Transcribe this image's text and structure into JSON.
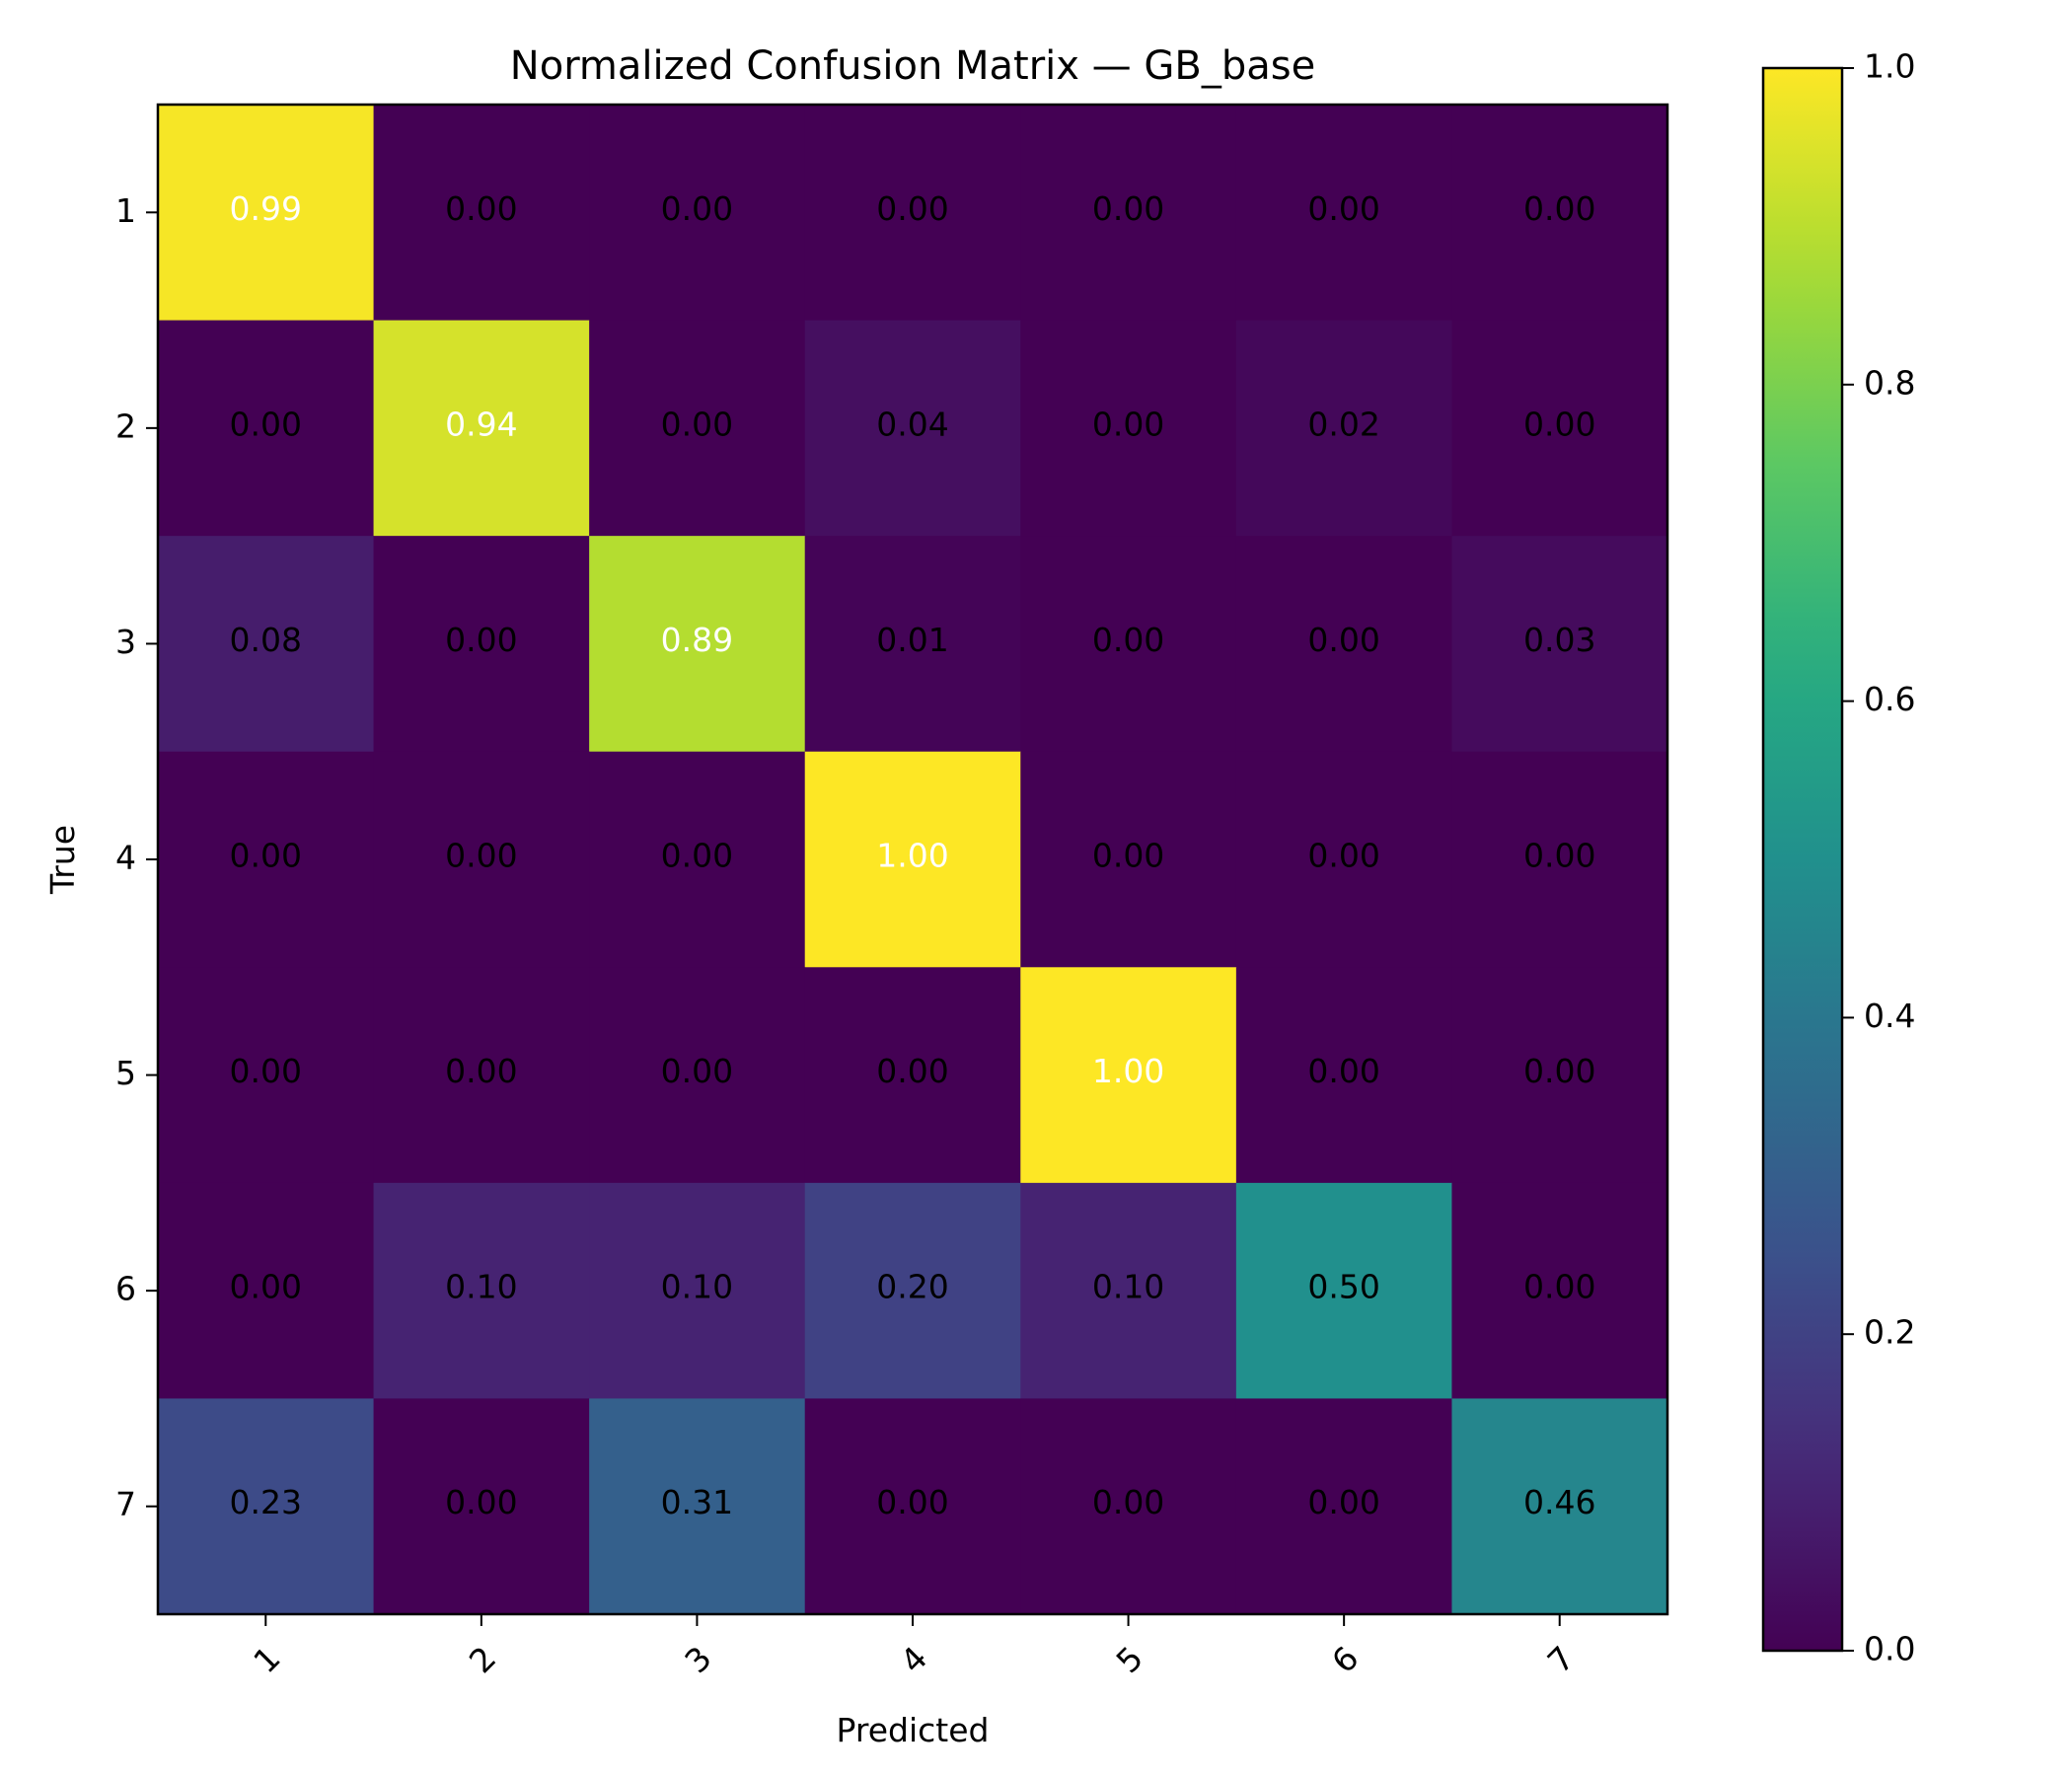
{
  "chart_data": {
    "type": "heatmap",
    "title": "Normalized Confusion Matrix — GB_base",
    "xlabel": "Predicted",
    "ylabel": "True",
    "x_categories": [
      "1",
      "2",
      "3",
      "4",
      "5",
      "6",
      "7"
    ],
    "y_categories": [
      "1",
      "2",
      "3",
      "4",
      "5",
      "6",
      "7"
    ],
    "values": [
      [
        0.99,
        0.0,
        0.0,
        0.0,
        0.0,
        0.0,
        0.0
      ],
      [
        0.0,
        0.94,
        0.0,
        0.04,
        0.0,
        0.02,
        0.0
      ],
      [
        0.08,
        0.0,
        0.89,
        0.01,
        0.0,
        0.0,
        0.03
      ],
      [
        0.0,
        0.0,
        0.0,
        1.0,
        0.0,
        0.0,
        0.0
      ],
      [
        0.0,
        0.0,
        0.0,
        0.0,
        1.0,
        0.0,
        0.0
      ],
      [
        0.0,
        0.1,
        0.1,
        0.2,
        0.1,
        0.5,
        0.0
      ],
      [
        0.23,
        0.0,
        0.31,
        0.0,
        0.0,
        0.0,
        0.46
      ]
    ],
    "colormap": "viridis",
    "color_range": [
      0.0,
      1.0
    ],
    "colorbar_ticks": [
      "0.0",
      "0.2",
      "0.4",
      "0.6",
      "0.8",
      "1.0"
    ],
    "x_tick_rotation_deg": 45,
    "grid": false
  }
}
